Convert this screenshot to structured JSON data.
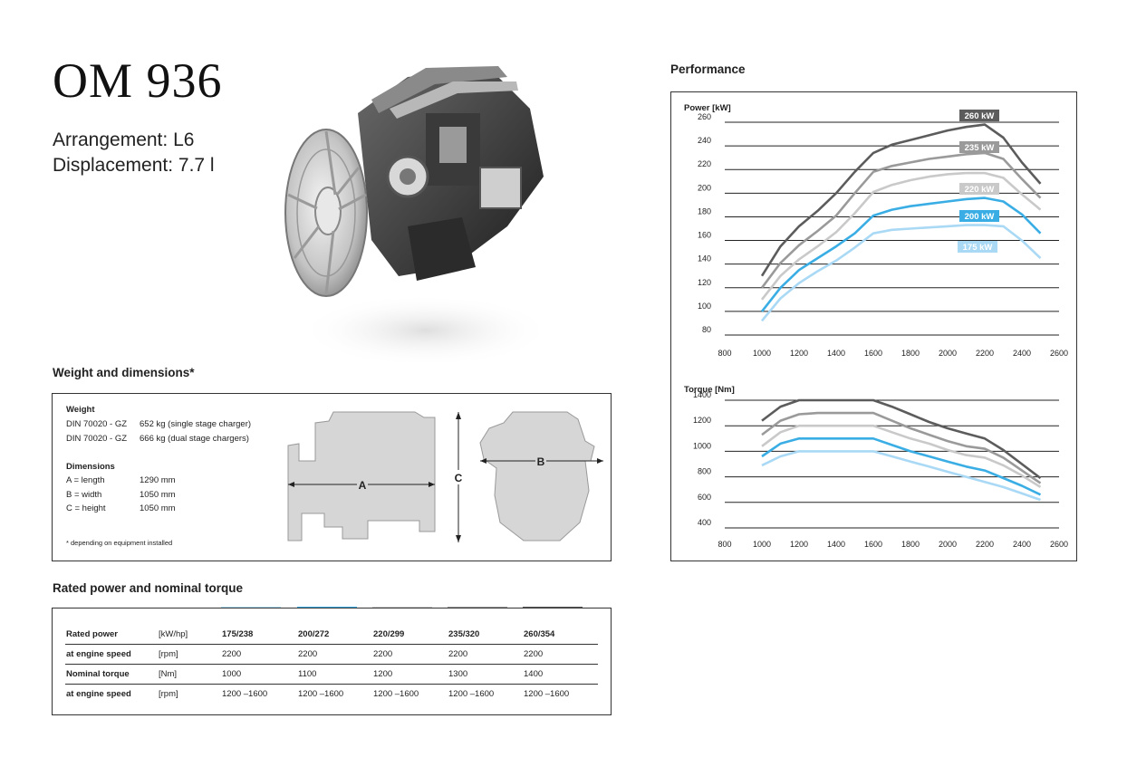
{
  "header": {
    "model": "OM 936",
    "arrangement": "Arrangement: L6",
    "displacement": "Displacement: 7.7 l"
  },
  "weight_dimensions": {
    "section_title": "Weight and dimensions*",
    "weight_heading": "Weight",
    "weight_rows": [
      {
        "label": "DIN 70020 - GZ",
        "value": "652 kg (single stage charger)"
      },
      {
        "label": "DIN 70020 - GZ",
        "value": "666 kg (dual stage chargers)"
      }
    ],
    "dimensions_heading": "Dimensions",
    "dimension_rows": [
      {
        "label": "A = length",
        "value": "1290 mm"
      },
      {
        "label": "B = width",
        "value": "1050 mm"
      },
      {
        "label": "C = height",
        "value": "1050 mm"
      }
    ],
    "footnote": "* depending on equipment installed",
    "diagram_labels": {
      "a": "A",
      "b": "B",
      "c": "C"
    }
  },
  "rated": {
    "section_title": "Rated power and nominal torque",
    "swatch_colors": [
      "#a9d9f5",
      "#3aaee4",
      "#c9c9c9",
      "#9a9a9a",
      "#5c5c5c"
    ],
    "rows": [
      {
        "label": "Rated power",
        "unit": "[kW/hp]",
        "values": [
          "175/238",
          "200/272",
          "220/299",
          "235/320",
          "260/354"
        ]
      },
      {
        "label": "at engine speed",
        "unit": "[rpm]",
        "values": [
          "2200",
          "2200",
          "2200",
          "2200",
          "2200"
        ]
      },
      {
        "label": "Nominal torque",
        "unit": "[Nm]",
        "values": [
          "1000",
          "1100",
          "1200",
          "1300",
          "1400"
        ]
      },
      {
        "label": "at engine speed",
        "unit": "[rpm]",
        "values": [
          "1200 –1600",
          "1200 –1600",
          "1200 –1600",
          "1200 –1600",
          "1200 –1600"
        ]
      }
    ]
  },
  "performance": {
    "section_title": "Performance"
  },
  "chart_data": [
    {
      "type": "line",
      "title": "",
      "ylabel": "Power  [kW]",
      "xlim": [
        800,
        2600
      ],
      "ylim": [
        80,
        260
      ],
      "x_ticks": [
        "800",
        "1000",
        "1200",
        "1400",
        "1600",
        "1800",
        "2000",
        "2200",
        "2400",
        "2600"
      ],
      "y_ticks": [
        "80",
        "100",
        "120",
        "140",
        "160",
        "180",
        "200",
        "220",
        "240",
        "260"
      ],
      "grid": "horizontal",
      "series": [
        {
          "name": "175 kW",
          "color": "#a9d9f5",
          "x": [
            1000,
            1100,
            1200,
            1300,
            1400,
            1500,
            1600,
            1700,
            1800,
            1900,
            2000,
            2100,
            2200,
            2300,
            2400,
            2500
          ],
          "y": [
            92,
            111,
            124,
            134,
            143,
            154,
            166,
            169,
            170,
            171,
            172,
            173,
            173,
            172,
            160,
            145
          ]
        },
        {
          "name": "200 kW",
          "color": "#3aaee4",
          "x": [
            1000,
            1100,
            1200,
            1300,
            1400,
            1500,
            1600,
            1700,
            1800,
            1900,
            2000,
            2100,
            2200,
            2300,
            2400,
            2500
          ],
          "y": [
            100,
            120,
            135,
            145,
            155,
            166,
            181,
            186,
            189,
            191,
            193,
            195,
            196,
            193,
            182,
            166
          ]
        },
        {
          "name": "220 kW",
          "color": "#c9c9c9",
          "x": [
            1000,
            1100,
            1200,
            1300,
            1400,
            1500,
            1600,
            1700,
            1800,
            1900,
            2000,
            2100,
            2200,
            2300,
            2400,
            2500
          ],
          "y": [
            110,
            130,
            144,
            155,
            167,
            183,
            201,
            207,
            211,
            214,
            216,
            217,
            217,
            213,
            199,
            186
          ]
        },
        {
          "name": "235 kW",
          "color": "#9a9a9a",
          "x": [
            1000,
            1100,
            1200,
            1300,
            1400,
            1500,
            1600,
            1700,
            1800,
            1900,
            2000,
            2100,
            2200,
            2300,
            2400,
            2500
          ],
          "y": [
            120,
            141,
            156,
            168,
            181,
            200,
            218,
            223,
            226,
            229,
            231,
            233,
            234,
            229,
            212,
            196
          ]
        },
        {
          "name": "260 kW",
          "color": "#5c5c5c",
          "x": [
            1000,
            1100,
            1200,
            1300,
            1400,
            1500,
            1600,
            1700,
            1800,
            1900,
            2000,
            2100,
            2200,
            2300,
            2400,
            2500
          ],
          "y": [
            130,
            155,
            172,
            185,
            200,
            218,
            234,
            241,
            245,
            249,
            253,
            256,
            258,
            247,
            226,
            208
          ]
        }
      ]
    },
    {
      "type": "line",
      "title": "",
      "ylabel": "Torque  [Nm]",
      "xlim": [
        800,
        2600
      ],
      "ylim": [
        400,
        1400
      ],
      "x_ticks": [
        "800",
        "1000",
        "1200",
        "1400",
        "1600",
        "1800",
        "2000",
        "2200",
        "2400",
        "2600"
      ],
      "y_ticks": [
        "400",
        "600",
        "800",
        "1000",
        "1200",
        "1400"
      ],
      "grid": "horizontal",
      "series": [
        {
          "name": "175 kW",
          "color": "#a9d9f5",
          "x": [
            1000,
            1100,
            1200,
            1300,
            1400,
            1500,
            1600,
            1700,
            1800,
            1900,
            2000,
            2100,
            2200,
            2300,
            2400,
            2500
          ],
          "y": [
            890,
            960,
            1000,
            1000,
            1000,
            1000,
            1000,
            960,
            920,
            880,
            840,
            800,
            760,
            720,
            670,
            620
          ]
        },
        {
          "name": "200 kW",
          "color": "#3aaee4",
          "x": [
            1000,
            1100,
            1200,
            1300,
            1400,
            1500,
            1600,
            1700,
            1800,
            1900,
            2000,
            2100,
            2200,
            2300,
            2400,
            2500
          ],
          "y": [
            960,
            1060,
            1100,
            1100,
            1100,
            1100,
            1100,
            1050,
            1000,
            960,
            920,
            880,
            850,
            790,
            730,
            660
          ]
        },
        {
          "name": "220 kW",
          "color": "#c9c9c9",
          "x": [
            1000,
            1100,
            1200,
            1300,
            1400,
            1500,
            1600,
            1700,
            1800,
            1900,
            2000,
            2100,
            2200,
            2300,
            2400,
            2500
          ],
          "y": [
            1040,
            1150,
            1200,
            1200,
            1200,
            1200,
            1200,
            1150,
            1100,
            1060,
            1010,
            970,
            950,
            890,
            810,
            720
          ]
        },
        {
          "name": "235 kW",
          "color": "#9a9a9a",
          "x": [
            1000,
            1100,
            1200,
            1300,
            1400,
            1500,
            1600,
            1700,
            1800,
            1900,
            2000,
            2100,
            2200,
            2300,
            2400,
            2500
          ],
          "y": [
            1130,
            1240,
            1290,
            1300,
            1300,
            1300,
            1300,
            1240,
            1180,
            1130,
            1080,
            1040,
            1020,
            950,
            850,
            750
          ]
        },
        {
          "name": "260 kW",
          "color": "#5c5c5c",
          "x": [
            1000,
            1100,
            1200,
            1300,
            1400,
            1500,
            1600,
            1700,
            1800,
            1900,
            2000,
            2100,
            2200,
            2300,
            2400,
            2500
          ],
          "y": [
            1240,
            1350,
            1400,
            1400,
            1400,
            1400,
            1400,
            1350,
            1290,
            1230,
            1180,
            1140,
            1100,
            1010,
            900,
            790
          ]
        }
      ]
    }
  ]
}
